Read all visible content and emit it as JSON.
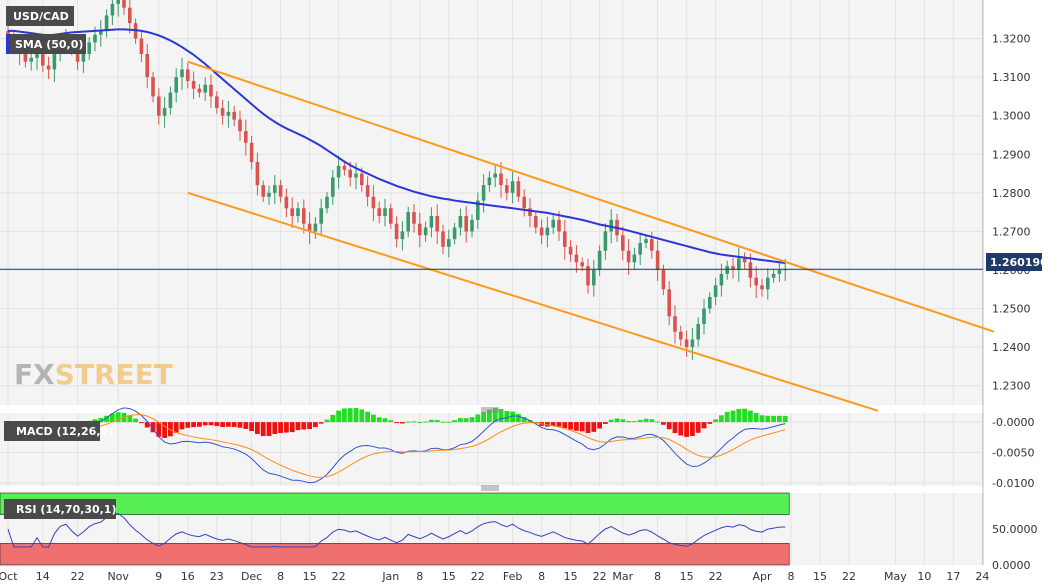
{
  "chart_data": [
    {
      "type": "candlestick",
      "symbol": "USD/CAD",
      "indicator": "SMA (50,0)",
      "ylim": [
        1.225,
        1.33
      ],
      "y_ticks": [
        "1.3200",
        "1.3100",
        "1.3000",
        "1.2900",
        "1.2800",
        "1.2700",
        "1.2600",
        "1.2500",
        "1.2400",
        "1.2300"
      ],
      "x_ticks": [
        {
          "label": "Oct",
          "idx": 0
        },
        {
          "label": "14",
          "idx": 6
        },
        {
          "label": "22",
          "idx": 12
        },
        {
          "label": "Nov",
          "idx": 19
        },
        {
          "label": "9",
          "idx": 26
        },
        {
          "label": "16",
          "idx": 31
        },
        {
          "label": "23",
          "idx": 36
        },
        {
          "label": "Dec",
          "idx": 42
        },
        {
          "label": "8",
          "idx": 47
        },
        {
          "label": "15",
          "idx": 52
        },
        {
          "label": "22",
          "idx": 57
        },
        {
          "label": "Jan",
          "idx": 66
        },
        {
          "label": "8",
          "idx": 71
        },
        {
          "label": "15",
          "idx": 76
        },
        {
          "label": "22",
          "idx": 81
        },
        {
          "label": "Feb",
          "idx": 87
        },
        {
          "label": "8",
          "idx": 92
        },
        {
          "label": "15",
          "idx": 97
        },
        {
          "label": "22",
          "idx": 102
        },
        {
          "label": "Mar",
          "idx": 106
        },
        {
          "label": "8",
          "idx": 112
        },
        {
          "label": "15",
          "idx": 117
        },
        {
          "label": "22",
          "idx": 122
        },
        {
          "label": "Apr",
          "idx": 130
        },
        {
          "label": "8",
          "idx": 135
        },
        {
          "label": "15",
          "idx": 140
        },
        {
          "label": "22",
          "idx": 145
        },
        {
          "label": "May",
          "idx": 153
        },
        {
          "label": "10",
          "idx": 158
        },
        {
          "label": "17",
          "idx": 163
        },
        {
          "label": "24",
          "idx": 168
        }
      ],
      "last_price": "1.260190",
      "close_series": [
        1.32,
        1.318,
        1.316,
        1.314,
        1.315,
        1.317,
        1.313,
        1.312,
        1.316,
        1.319,
        1.32,
        1.317,
        1.314,
        1.316,
        1.319,
        1.321,
        1.322,
        1.326,
        1.329,
        1.33,
        1.328,
        1.324,
        1.32,
        1.316,
        1.31,
        1.305,
        1.3,
        1.302,
        1.306,
        1.31,
        1.312,
        1.309,
        1.307,
        1.306,
        1.308,
        1.305,
        1.302,
        1.3,
        1.301,
        1.299,
        1.296,
        1.293,
        1.288,
        1.282,
        1.279,
        1.28,
        1.282,
        1.279,
        1.276,
        1.274,
        1.276,
        1.272,
        1.27,
        1.272,
        1.276,
        1.279,
        1.284,
        1.287,
        1.286,
        1.284,
        1.285,
        1.282,
        1.279,
        1.276,
        1.274,
        1.276,
        1.272,
        1.268,
        1.27,
        1.275,
        1.272,
        1.269,
        1.271,
        1.274,
        1.27,
        1.266,
        1.268,
        1.271,
        1.274,
        1.27,
        1.273,
        1.278,
        1.282,
        1.284,
        1.285,
        1.282,
        1.28,
        1.283,
        1.279,
        1.276,
        1.274,
        1.271,
        1.269,
        1.271,
        1.273,
        1.27,
        1.266,
        1.264,
        1.262,
        1.261,
        1.256,
        1.26,
        1.265,
        1.27,
        1.273,
        1.269,
        1.265,
        1.262,
        1.264,
        1.267,
        1.268,
        1.265,
        1.26,
        1.255,
        1.248,
        1.244,
        1.242,
        1.24,
        1.242,
        1.246,
        1.25,
        1.253,
        1.256,
        1.259,
        1.261,
        1.26,
        1.263,
        1.262,
        1.258,
        1.256,
        1.255,
        1.258,
        1.259,
        1.26,
        1.2602
      ],
      "sma_series": [
        1.322,
        1.322,
        1.3218,
        1.3216,
        1.3214,
        1.3212,
        1.321,
        1.3208,
        1.321,
        1.3212,
        1.3214,
        1.3216,
        1.3217,
        1.3218,
        1.3219,
        1.322,
        1.3221,
        1.3222,
        1.3223,
        1.3224,
        1.3224,
        1.3223,
        1.3222,
        1.322,
        1.3217,
        1.3213,
        1.3208,
        1.3202,
        1.3195,
        1.3187,
        1.3178,
        1.3168,
        1.3158,
        1.3146,
        1.3134,
        1.3121,
        1.3108,
        1.3095,
        1.3082,
        1.3069,
        1.3056,
        1.3043,
        1.303,
        1.3017,
        1.3005,
        1.2994,
        1.2984,
        1.2975,
        1.2967,
        1.296,
        1.2953,
        1.2946,
        1.2938,
        1.293,
        1.2921,
        1.2911,
        1.2901,
        1.2891,
        1.2881,
        1.2872,
        1.2864,
        1.2857,
        1.285,
        1.2843,
        1.2836,
        1.283,
        1.2824,
        1.2818,
        1.2813,
        1.2808,
        1.2803,
        1.2799,
        1.2795,
        1.2791,
        1.2788,
        1.2785,
        1.2783,
        1.278,
        1.2778,
        1.2776,
        1.2774,
        1.2772,
        1.277,
        1.2768,
        1.2766,
        1.2764,
        1.2762,
        1.276,
        1.2758,
        1.2756,
        1.2754,
        1.2752,
        1.275,
        1.2748,
        1.2745,
        1.2742,
        1.2739,
        1.2736,
        1.2733,
        1.273,
        1.2726,
        1.2722,
        1.2718,
        1.2715,
        1.2712,
        1.2709,
        1.2706,
        1.2702,
        1.2698,
        1.2694,
        1.269,
        1.2686,
        1.2682,
        1.2678,
        1.2674,
        1.267,
        1.2666,
        1.2662,
        1.2658,
        1.2654,
        1.265,
        1.2646,
        1.2643,
        1.264,
        1.2638,
        1.2636,
        1.2634,
        1.2632,
        1.263,
        1.2628,
        1.2626,
        1.2624,
        1.2622,
        1.262,
        1.2618
      ],
      "channel_upper": [
        {
          "idx": 31,
          "y": 1.314
        },
        {
          "idx": 170,
          "y": 1.244
        }
      ],
      "channel_lower": [
        {
          "idx": 31,
          "y": 1.28
        },
        {
          "idx": 150,
          "y": 1.2235
        }
      ]
    },
    {
      "type": "macd",
      "label": "MACD (12,26,9)",
      "ylim": [
        -0.0105,
        0.0015
      ],
      "y_ticks": [
        "-0.0000",
        "-0.0050",
        "-0.0100"
      ]
    },
    {
      "type": "rsi",
      "label": "RSI (14,70,30,1)",
      "ylim": [
        0,
        100
      ],
      "y_ticks": [
        "50.0000",
        "0.0000"
      ]
    }
  ],
  "colors": {
    "bull": "#3a9a6e",
    "bear": "#d9534f",
    "sma": "#2a36d6",
    "channel": "#ff9a1a",
    "macd_line": "#3355cc",
    "signal_line": "#ff8c1a",
    "hist_pos": "#22dd22",
    "hist_neg": "#ee1111",
    "rsi_line": "#3344bb",
    "rsi_overbought": "#55ee55",
    "rsi_oversold": "#f07070",
    "price_tag": "#1f3a66",
    "label_bg": "#4a4a4a"
  },
  "watermark": {
    "fx": "FX",
    "street": "STREET"
  }
}
